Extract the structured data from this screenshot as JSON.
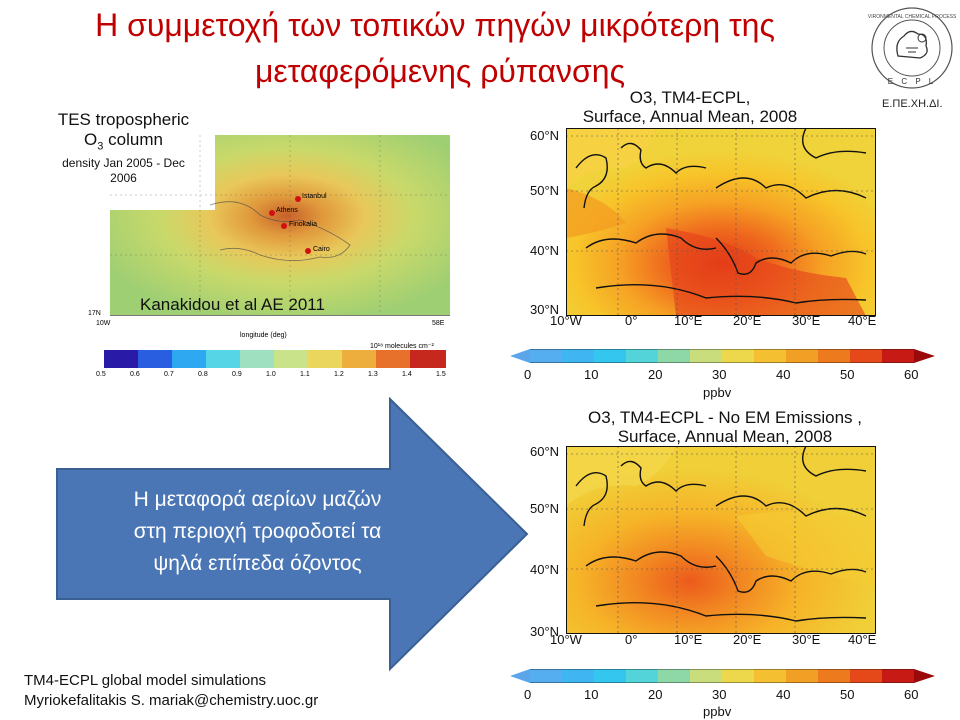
{
  "slide": {
    "title_line1": "Η συμμετοχή των τοπικών πηγών μικρότερη της",
    "title_line2": "μεταφερόμενης ρύπανσης",
    "logo": {
      "caption": "Ε.ΠΕ.ΧΗ.ΔΙ.",
      "ring_text": "ENVIRONMENTAL CHEMICAL PROCESSES LABORATORY",
      "letters": "ECPL"
    },
    "tes": {
      "line1": "TES tropospheric",
      "line2": "O",
      "line2_sub": "3",
      "line2_rest": " column",
      "line3": "density Jan 2005 - Dec",
      "line4": "2006",
      "citation": "Kanakidou et al AE 2011",
      "lat_label": "17N",
      "lon_left": "10W",
      "lon_right": "58E",
      "xlabel": "longitude (deg)",
      "units": "10¹⁸ molecules cm⁻²",
      "cities": [
        "Istanbul",
        "Athens",
        "Finokalia",
        "Cairo"
      ],
      "colorbar_ticks": [
        "0.5",
        "0.6",
        "0.7",
        "0.8",
        "0.9",
        "1.0",
        "1.1",
        "1.2",
        "1.3",
        "1.4",
        "1.5"
      ]
    },
    "map1": {
      "title_line1": "O3, TM4-ECPL,",
      "title_line2": "Surface, Annual Mean, 2008",
      "lat": [
        "60°N",
        "50°N",
        "40°N",
        "30°N"
      ],
      "lon": [
        "10°W",
        "0°",
        "10°E",
        "20°E",
        "30°E",
        "40°E"
      ]
    },
    "cb1": {
      "ticks": [
        "0",
        "10",
        "20",
        "30",
        "40",
        "50",
        "60"
      ],
      "unit": "ppbv"
    },
    "map2": {
      "title_line1": "O3, TM4-ECPL - No EM Emissions ,",
      "title_line2": "Surface, Annual Mean, 2008",
      "lat": [
        "60°N",
        "50°N",
        "40°N",
        "30°N"
      ],
      "lon": [
        "10°W",
        "0°",
        "10°E",
        "20°E",
        "30°E",
        "40°E"
      ]
    },
    "cb2": {
      "ticks": [
        "0",
        "10",
        "20",
        "30",
        "40",
        "50",
        "60"
      ],
      "unit": "ppbv"
    },
    "arrow": {
      "line1": "Η μεταφορά αερίων μαζών",
      "line2": "στη περιοχή τροφοδοτεί τα",
      "line3": "ψηλά επίπεδα όζοντος"
    },
    "credit": {
      "line1": "TM4-ECPL global model simulations",
      "line2": "Myriokefalitakis S. mariak@chemistry.uoc.gr"
    },
    "colors": {
      "title": "#c00000",
      "arrow": "#4a76b5",
      "arrow_border": "#3a5f93"
    }
  }
}
